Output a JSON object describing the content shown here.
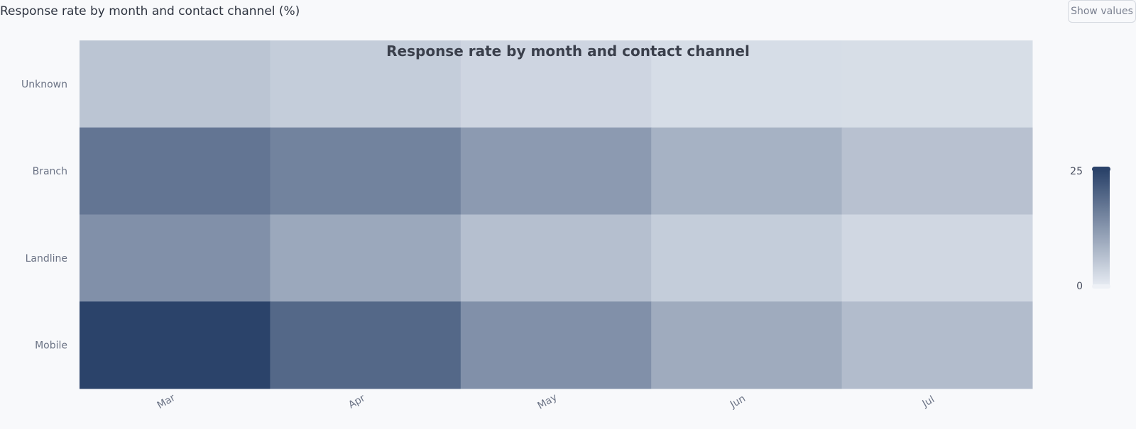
{
  "header": {
    "title": "Response rate by month and contact channel (%)",
    "toggle_label": "Show values"
  },
  "colors": {
    "scale_low": "#e6ebf2",
    "scale_high": "#2b436a",
    "background": "#f8f9fb"
  },
  "chart_data": {
    "type": "heatmap",
    "title": "Response rate by month and contact channel",
    "x_categories": [
      "Mar",
      "Apr",
      "May",
      "Jun",
      "Jul"
    ],
    "y_categories": [
      "Unknown",
      "Branch",
      "Landline",
      "Mobile"
    ],
    "values": [
      [
        5.7,
        4.5,
        3.2,
        2.1,
        2.0
      ],
      [
        17.5,
        15.5,
        12.0,
        8.5,
        6.2
      ],
      [
        13.5,
        10.0,
        6.5,
        4.5,
        3.0
      ],
      [
        25.0,
        19.5,
        13.5,
        9.5,
        7.0
      ]
    ],
    "colorbar": {
      "min": 0,
      "max": 25,
      "ticks": [
        0,
        25
      ]
    },
    "xlabel": "",
    "ylabel": ""
  }
}
